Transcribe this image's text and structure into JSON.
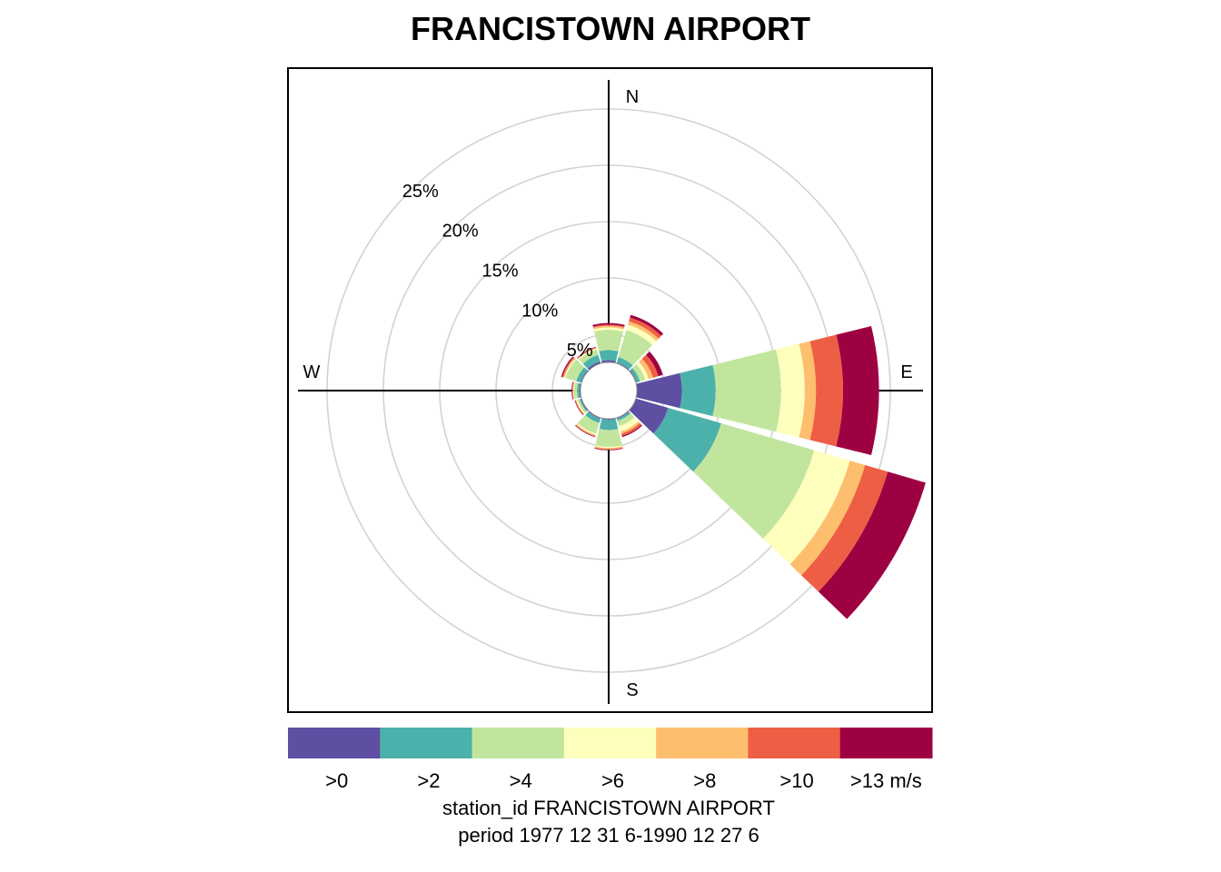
{
  "chart_data": {
    "type": "windrose",
    "title": "FRANCISTOWN AIRPORT",
    "cardinals": [
      "N",
      "E",
      "S",
      "W"
    ],
    "rings": [
      {
        "value": 5,
        "label": "5%"
      },
      {
        "value": 10,
        "label": "10%"
      },
      {
        "value": 15,
        "label": "15%"
      },
      {
        "value": 20,
        "label": "20%"
      },
      {
        "value": 25,
        "label": "25%"
      }
    ],
    "calm_radius": 2.5,
    "sector_width_deg": 30,
    "speed_bins": [
      {
        "label": ">0",
        "color": "#5E4FA2"
      },
      {
        "label": ">2",
        "color": "#4DB1AB"
      },
      {
        "label": ">4",
        "color": "#C2E59E"
      },
      {
        "label": ">6",
        "color": "#FEFEBD"
      },
      {
        "label": ">8",
        "color": "#FDBE6E"
      },
      {
        "label": ">10",
        "color": "#EE5E45"
      },
      {
        "label": ">13 m/s",
        "color": "#9E0142"
      }
    ],
    "sectors": [
      {
        "direction": 0,
        "cumulative": [
          2.7,
          3.6,
          5.4,
          5.6,
          5.75,
          5.85,
          6.0
        ]
      },
      {
        "direction": 30,
        "cumulative": [
          2.6,
          3.1,
          5.6,
          6.1,
          6.4,
          6.75,
          7.0
        ]
      },
      {
        "direction": 60,
        "cumulative": [
          2.6,
          2.9,
          3.4,
          3.7,
          4.1,
          4.6,
          5.0
        ]
      },
      {
        "direction": 90,
        "cumulative": [
          6.5,
          9.5,
          15.3,
          17.4,
          18.4,
          20.8,
          24.0
        ]
      },
      {
        "direction": 120,
        "cumulative": [
          5.5,
          10.4,
          19.0,
          22.3,
          23.7,
          25.8,
          29.3
        ]
      },
      {
        "direction": 150,
        "cumulative": [
          2.6,
          2.8,
          3.3,
          3.8,
          4.0,
          4.2,
          4.3
        ]
      },
      {
        "direction": 180,
        "cumulative": [
          2.6,
          3.5,
          5.0,
          5.1,
          5.2,
          5.25,
          5.3
        ]
      },
      {
        "direction": 210,
        "cumulative": [
          2.6,
          3.0,
          4.0,
          4.1,
          4.2,
          4.25,
          4.3
        ]
      },
      {
        "direction": 240,
        "cumulative": [
          2.6,
          2.7,
          2.9,
          3.0,
          3.05,
          3.1,
          3.15
        ]
      },
      {
        "direction": 270,
        "cumulative": [
          2.6,
          2.8,
          3.1,
          3.15,
          3.2,
          3.25,
          3.3
        ]
      },
      {
        "direction": 300,
        "cumulative": [
          2.6,
          3.0,
          4.0,
          4.1,
          4.2,
          4.3,
          4.4
        ]
      },
      {
        "direction": 330,
        "cumulative": [
          2.7,
          3.3,
          3.8,
          3.9,
          3.95,
          4.0,
          4.05
        ]
      }
    ],
    "caption_lines": [
      "station_id FRANCISTOWN AIRPORT",
      "period 1977 12 31 6-1990 12 27 6"
    ]
  }
}
